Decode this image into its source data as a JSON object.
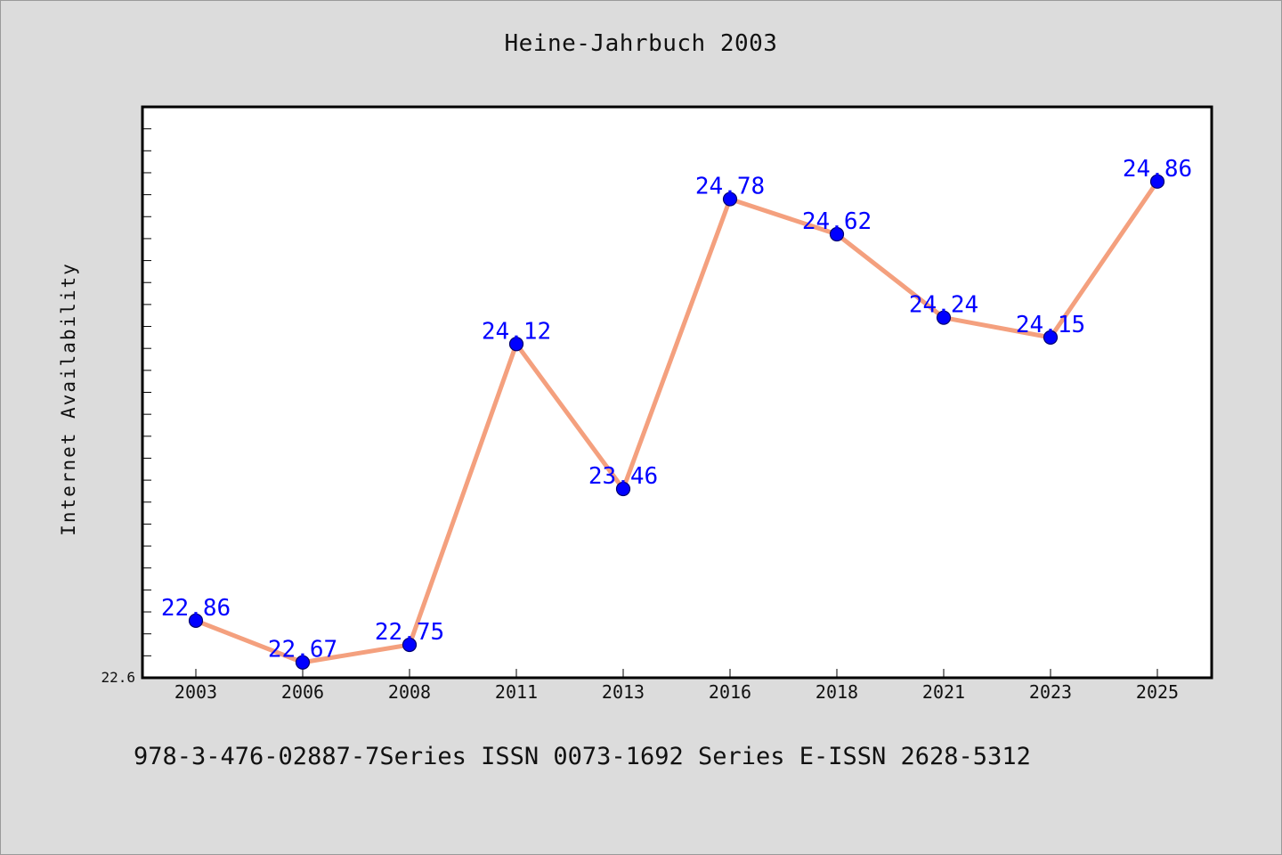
{
  "title": "Heine-Jahrbuch 2003",
  "footer": "978-3-476-02887-7Series ISSN 0073-1692 Series E-ISSN 2628-5312",
  "colors": {
    "background": "#dcdcdc",
    "plot_background": "#ffffff",
    "line": "#f4a07e",
    "marker": "#0000ff",
    "data_label": "#0000ff"
  },
  "chart_data": {
    "type": "line",
    "title": "Heine-Jahrbuch 2003",
    "xlabel": "",
    "ylabel": "Internet Availability",
    "categories": [
      "2003",
      "2006",
      "2008",
      "2011",
      "2013",
      "2016",
      "2018",
      "2021",
      "2023",
      "2025"
    ],
    "series": [
      {
        "values": [
          22.86,
          22.67,
          22.75,
          24.12,
          23.46,
          24.78,
          24.62,
          24.24,
          24.15,
          24.86
        ]
      }
    ],
    "ylim": [
      22.6,
      25.2
    ],
    "yticks_labeled": [
      "22.6"
    ],
    "grid": false,
    "legend": "none"
  }
}
